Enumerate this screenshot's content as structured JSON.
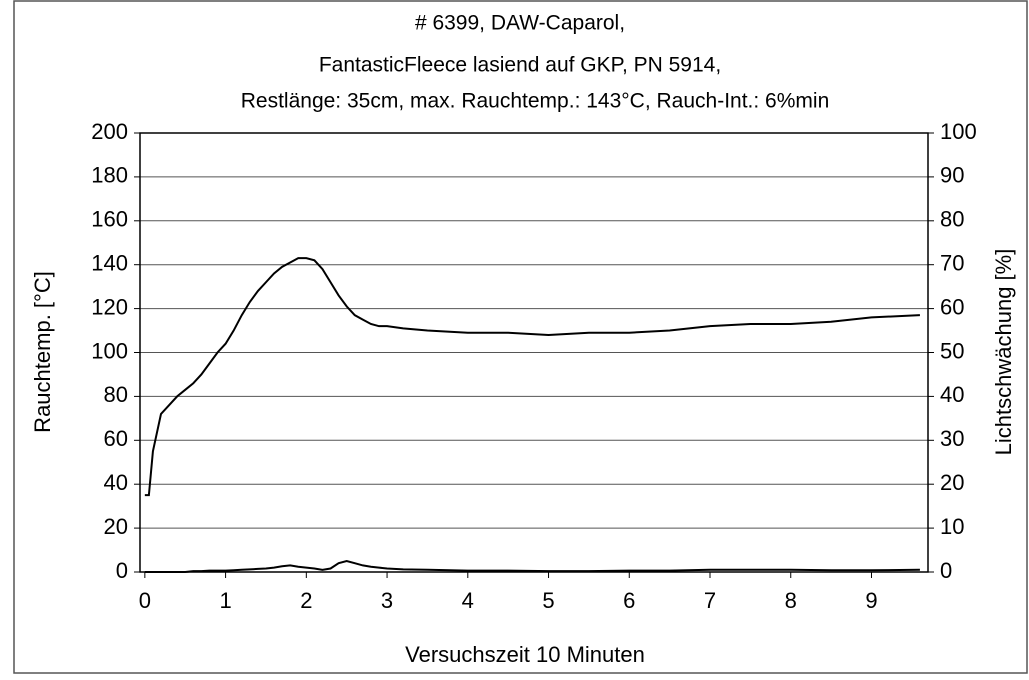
{
  "chart_data": {
    "type": "line",
    "title_lines": [
      "# 6399, DAW-Caparol,",
      "FantasticFleece lasiend auf GKP, PN 5914,",
      "Restlänge: 35cm, max. Rauchtemp.: 143°C, Rauch-Int.: 6%min"
    ],
    "xlabel": "Versuchszeit 10 Minuten",
    "ylabel": "Rauchtemp. [°C]",
    "y2label": "Lichtschwächung [%]",
    "xlim": [
      -0.06,
      9.7
    ],
    "xticks": [
      0,
      1,
      2,
      3,
      4,
      5,
      6,
      7,
      8,
      9
    ],
    "ylim": [
      0,
      200
    ],
    "yticks": [
      0,
      20,
      40,
      60,
      80,
      100,
      120,
      140,
      160,
      180,
      200
    ],
    "y2lim": [
      0,
      100
    ],
    "y2ticks": [
      0,
      10,
      20,
      30,
      40,
      50,
      60,
      70,
      80,
      90,
      100
    ],
    "grid": true,
    "x": [
      0,
      0.05,
      0.1,
      0.2,
      0.3,
      0.4,
      0.5,
      0.6,
      0.7,
      0.8,
      0.9,
      1.0,
      1.1,
      1.2,
      1.3,
      1.4,
      1.5,
      1.6,
      1.7,
      1.8,
      1.9,
      2.0,
      2.1,
      2.2,
      2.3,
      2.4,
      2.5,
      2.6,
      2.7,
      2.8,
      2.9,
      3.0,
      3.2,
      3.5,
      4.0,
      4.5,
      5.0,
      5.5,
      6.0,
      6.5,
      7.0,
      7.5,
      8.0,
      8.5,
      9.0,
      9.6
    ],
    "series": [
      {
        "color": "#000000",
        "axis": "y",
        "values": [
          35,
          35,
          55,
          72,
          76,
          80,
          83,
          86,
          90,
          95,
          100,
          104,
          110,
          117,
          123,
          128,
          132,
          136,
          139,
          141,
          143,
          143,
          142,
          138,
          132,
          126,
          121,
          117,
          115,
          113,
          112,
          112,
          111,
          110,
          109,
          109,
          108,
          109,
          109,
          110,
          112,
          113,
          113,
          114,
          116,
          117
        ]
      },
      {
        "color": "#000000",
        "axis": "y2",
        "values": [
          0,
          0,
          0,
          0,
          0,
          0,
          0,
          0.2,
          0.2,
          0.3,
          0.3,
          0.3,
          0.4,
          0.5,
          0.6,
          0.7,
          0.8,
          1.0,
          1.3,
          1.5,
          1.2,
          1.0,
          0.8,
          0.5,
          0.8,
          2.0,
          2.5,
          2.0,
          1.5,
          1.2,
          1.0,
          0.8,
          0.6,
          0.5,
          0.3,
          0.3,
          0.2,
          0.2,
          0.3,
          0.3,
          0.5,
          0.5,
          0.5,
          0.4,
          0.4,
          0.5
        ]
      }
    ]
  }
}
